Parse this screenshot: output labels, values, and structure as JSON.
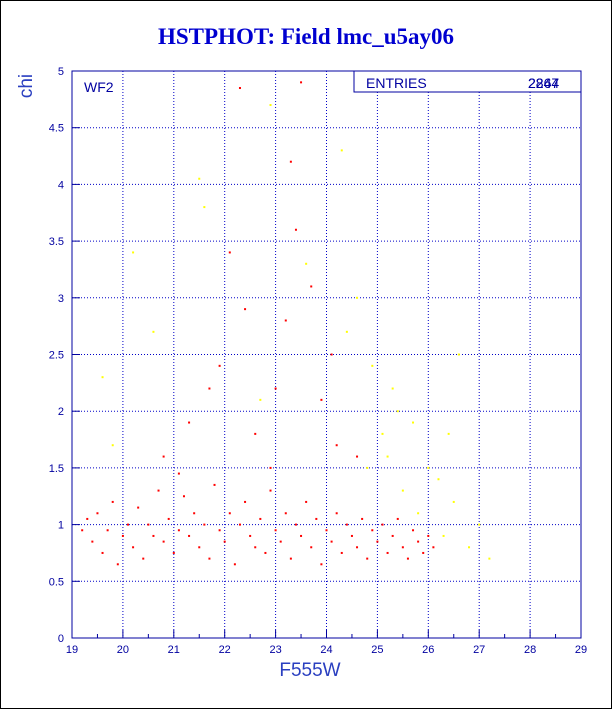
{
  "title": "HSTPHOT: Field lmc_u5ay06",
  "chart_data": {
    "type": "scatter",
    "title": "HSTPHOT: Field lmc_u5ay06",
    "xlabel": "F555W",
    "ylabel": "chi",
    "xlim": [
      19,
      29
    ],
    "ylim": [
      0,
      5
    ],
    "x_ticks": [
      "19",
      "20",
      "21",
      "22",
      "23",
      "24",
      "25",
      "26",
      "27",
      "28",
      "29"
    ],
    "y_ticks": [
      "0",
      "0.5",
      "1",
      "1.5",
      "2",
      "2.5",
      "3",
      "3.5",
      "4",
      "4.5",
      "5"
    ],
    "grid": true,
    "annotation": "WF2",
    "stats_box": {
      "label": "ENTRIES",
      "values": [
        "2247",
        "2864"
      ],
      "position": "top-right"
    },
    "series": [
      {
        "color": "#ff0000",
        "description_of_distribution": "dense band at chi ~0.6-1.4 for F555W 19-26.2, sparse scatter up to chi ~5 around F555W 21-24.5",
        "points": [
          [
            19.2,
            0.95
          ],
          [
            19.3,
            1.05
          ],
          [
            19.4,
            0.85
          ],
          [
            19.5,
            1.1
          ],
          [
            19.6,
            0.75
          ],
          [
            19.7,
            0.95
          ],
          [
            19.8,
            1.2
          ],
          [
            19.9,
            0.65
          ],
          [
            20.0,
            0.9
          ],
          [
            20.1,
            1.0
          ],
          [
            20.2,
            0.8
          ],
          [
            20.3,
            1.15
          ],
          [
            20.4,
            0.7
          ],
          [
            20.5,
            1.0
          ],
          [
            20.6,
            0.9
          ],
          [
            20.7,
            1.3
          ],
          [
            20.8,
            0.85
          ],
          [
            20.9,
            1.05
          ],
          [
            21.0,
            0.75
          ],
          [
            21.1,
            0.95
          ],
          [
            21.2,
            1.25
          ],
          [
            21.3,
            0.9
          ],
          [
            21.4,
            1.1
          ],
          [
            21.5,
            0.8
          ],
          [
            21.6,
            1.0
          ],
          [
            21.7,
            0.7
          ],
          [
            21.8,
            1.35
          ],
          [
            21.9,
            0.95
          ],
          [
            22.0,
            0.85
          ],
          [
            22.1,
            1.1
          ],
          [
            22.2,
            0.65
          ],
          [
            22.3,
            1.0
          ],
          [
            22.4,
            1.2
          ],
          [
            22.5,
            0.9
          ],
          [
            22.6,
            0.8
          ],
          [
            22.7,
            1.05
          ],
          [
            22.8,
            0.75
          ],
          [
            22.9,
            1.3
          ],
          [
            23.0,
            0.95
          ],
          [
            23.1,
            0.85
          ],
          [
            23.2,
            1.1
          ],
          [
            23.3,
            0.7
          ],
          [
            23.4,
            1.0
          ],
          [
            23.5,
            0.9
          ],
          [
            23.6,
            1.2
          ],
          [
            23.7,
            0.8
          ],
          [
            23.8,
            1.05
          ],
          [
            23.9,
            0.65
          ],
          [
            24.0,
            0.95
          ],
          [
            24.1,
            0.85
          ],
          [
            24.2,
            1.1
          ],
          [
            24.3,
            0.75
          ],
          [
            24.4,
            1.0
          ],
          [
            24.5,
            0.9
          ],
          [
            24.6,
            0.8
          ],
          [
            24.7,
            1.05
          ],
          [
            24.8,
            0.7
          ],
          [
            24.9,
            0.95
          ],
          [
            25.0,
            0.85
          ],
          [
            25.1,
            1.0
          ],
          [
            25.2,
            0.75
          ],
          [
            25.3,
            0.9
          ],
          [
            25.4,
            1.05
          ],
          [
            25.5,
            0.8
          ],
          [
            25.6,
            0.7
          ],
          [
            25.7,
            0.95
          ],
          [
            25.8,
            0.85
          ],
          [
            25.9,
            0.75
          ],
          [
            26.0,
            0.9
          ],
          [
            26.1,
            0.8
          ],
          [
            21.3,
            1.9
          ],
          [
            21.9,
            2.4
          ],
          [
            22.1,
            3.4
          ],
          [
            22.6,
            1.8
          ],
          [
            23.2,
            2.8
          ],
          [
            23.4,
            3.6
          ],
          [
            23.5,
            4.9
          ],
          [
            23.3,
            4.2
          ],
          [
            22.3,
            4.85
          ],
          [
            23.9,
            2.1
          ],
          [
            24.2,
            1.7
          ],
          [
            22.4,
            2.9
          ],
          [
            21.7,
            2.2
          ],
          [
            20.8,
            1.6
          ],
          [
            24.1,
            2.5
          ],
          [
            23.7,
            3.1
          ],
          [
            22.9,
            1.5
          ],
          [
            21.1,
            1.45
          ],
          [
            24.6,
            1.6
          ],
          [
            23.0,
            2.2
          ]
        ]
      },
      {
        "color": "#ffff00",
        "description_of_distribution": "faint population mostly at F555W 24.5-27.5 with chi 0.5-2, plus scattered points up to chi 5",
        "points": [
          [
            25.2,
            1.6
          ],
          [
            25.5,
            1.3
          ],
          [
            25.8,
            1.1
          ],
          [
            26.0,
            1.5
          ],
          [
            26.3,
            0.9
          ],
          [
            26.5,
            1.2
          ],
          [
            26.8,
            0.8
          ],
          [
            27.0,
            1.0
          ],
          [
            25.4,
            2.0
          ],
          [
            24.9,
            2.4
          ],
          [
            24.4,
            2.7
          ],
          [
            25.1,
            1.8
          ],
          [
            26.2,
            1.4
          ],
          [
            25.7,
            1.9
          ],
          [
            24.6,
            3.0
          ],
          [
            21.6,
            3.8
          ],
          [
            21.5,
            4.05
          ],
          [
            20.2,
            3.4
          ],
          [
            19.6,
            2.3
          ],
          [
            22.7,
            2.1
          ],
          [
            23.6,
            3.3
          ],
          [
            24.3,
            4.3
          ],
          [
            22.9,
            4.7
          ],
          [
            26.6,
            2.5
          ],
          [
            26.4,
            1.8
          ],
          [
            25.3,
            2.2
          ],
          [
            20.6,
            2.7
          ],
          [
            19.8,
            1.7
          ],
          [
            24.8,
            1.5
          ],
          [
            27.2,
            0.7
          ]
        ]
      }
    ]
  }
}
